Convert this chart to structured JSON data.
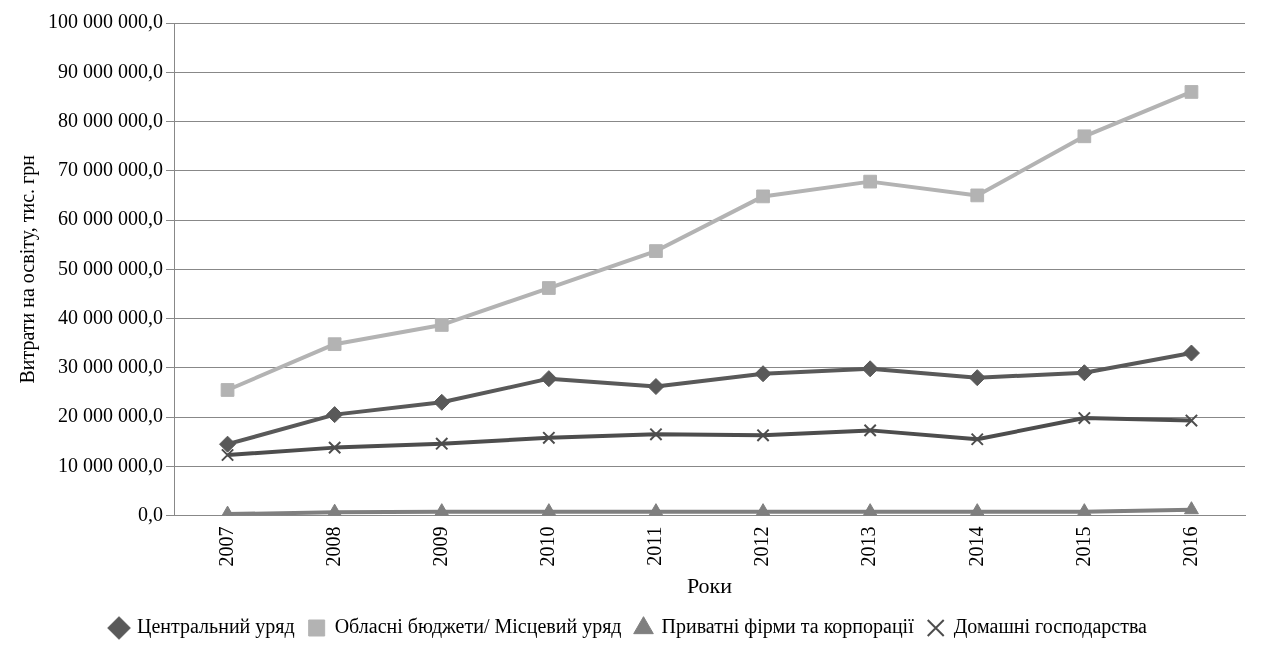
{
  "chart_data": {
    "type": "line",
    "xlabel": "Роки",
    "ylabel": "Витрати на освіту, тис. грн",
    "categories": [
      "2007",
      "2008",
      "2009",
      "2010",
      "2011",
      "2012",
      "2013",
      "2014",
      "2015",
      "2016"
    ],
    "series": [
      {
        "name": "Центральний уряд",
        "color": "#595959",
        "marker": "diamond",
        "values": [
          14500000,
          20500000,
          23000000,
          27800000,
          26200000,
          28800000,
          29800000,
          28000000,
          29000000,
          33000000
        ]
      },
      {
        "name": "Обласні бюджети/ Місцевий уряд",
        "color": "#b3b3b3",
        "marker": "square",
        "values": [
          25500000,
          34800000,
          38700000,
          46200000,
          53700000,
          64800000,
          67800000,
          65000000,
          77000000,
          86000000
        ]
      },
      {
        "name": "Приватні фірми та корпорації",
        "color": "#7f7f7f",
        "marker": "triangle",
        "values": [
          300000,
          700000,
          800000,
          800000,
          800000,
          800000,
          800000,
          800000,
          800000,
          1200000
        ]
      },
      {
        "name": "Домашні господарства",
        "color": "#4d4d4d",
        "marker": "cross",
        "values": [
          12300000,
          13800000,
          14600000,
          15800000,
          16500000,
          16300000,
          17300000,
          15500000,
          19800000,
          19300000
        ]
      }
    ],
    "ylim": [
      0,
      100000000
    ],
    "yticks": [
      {
        "value": 0,
        "label": "0,0"
      },
      {
        "value": 10000000,
        "label": "10 000 000,0"
      },
      {
        "value": 20000000,
        "label": "20 000 000,0"
      },
      {
        "value": 30000000,
        "label": "30 000 000,0"
      },
      {
        "value": 40000000,
        "label": "40 000 000,0"
      },
      {
        "value": 50000000,
        "label": "50 000 000,0"
      },
      {
        "value": 60000000,
        "label": "60 000 000,0"
      },
      {
        "value": 70000000,
        "label": "70 000 000,0"
      },
      {
        "value": 80000000,
        "label": "80 000 000,0"
      },
      {
        "value": 90000000,
        "label": "90 000 000,0"
      },
      {
        "value": 100000000,
        "label": "100 000 000,0"
      }
    ],
    "grid": "y",
    "legend": "bottom",
    "line_style": "solid"
  }
}
